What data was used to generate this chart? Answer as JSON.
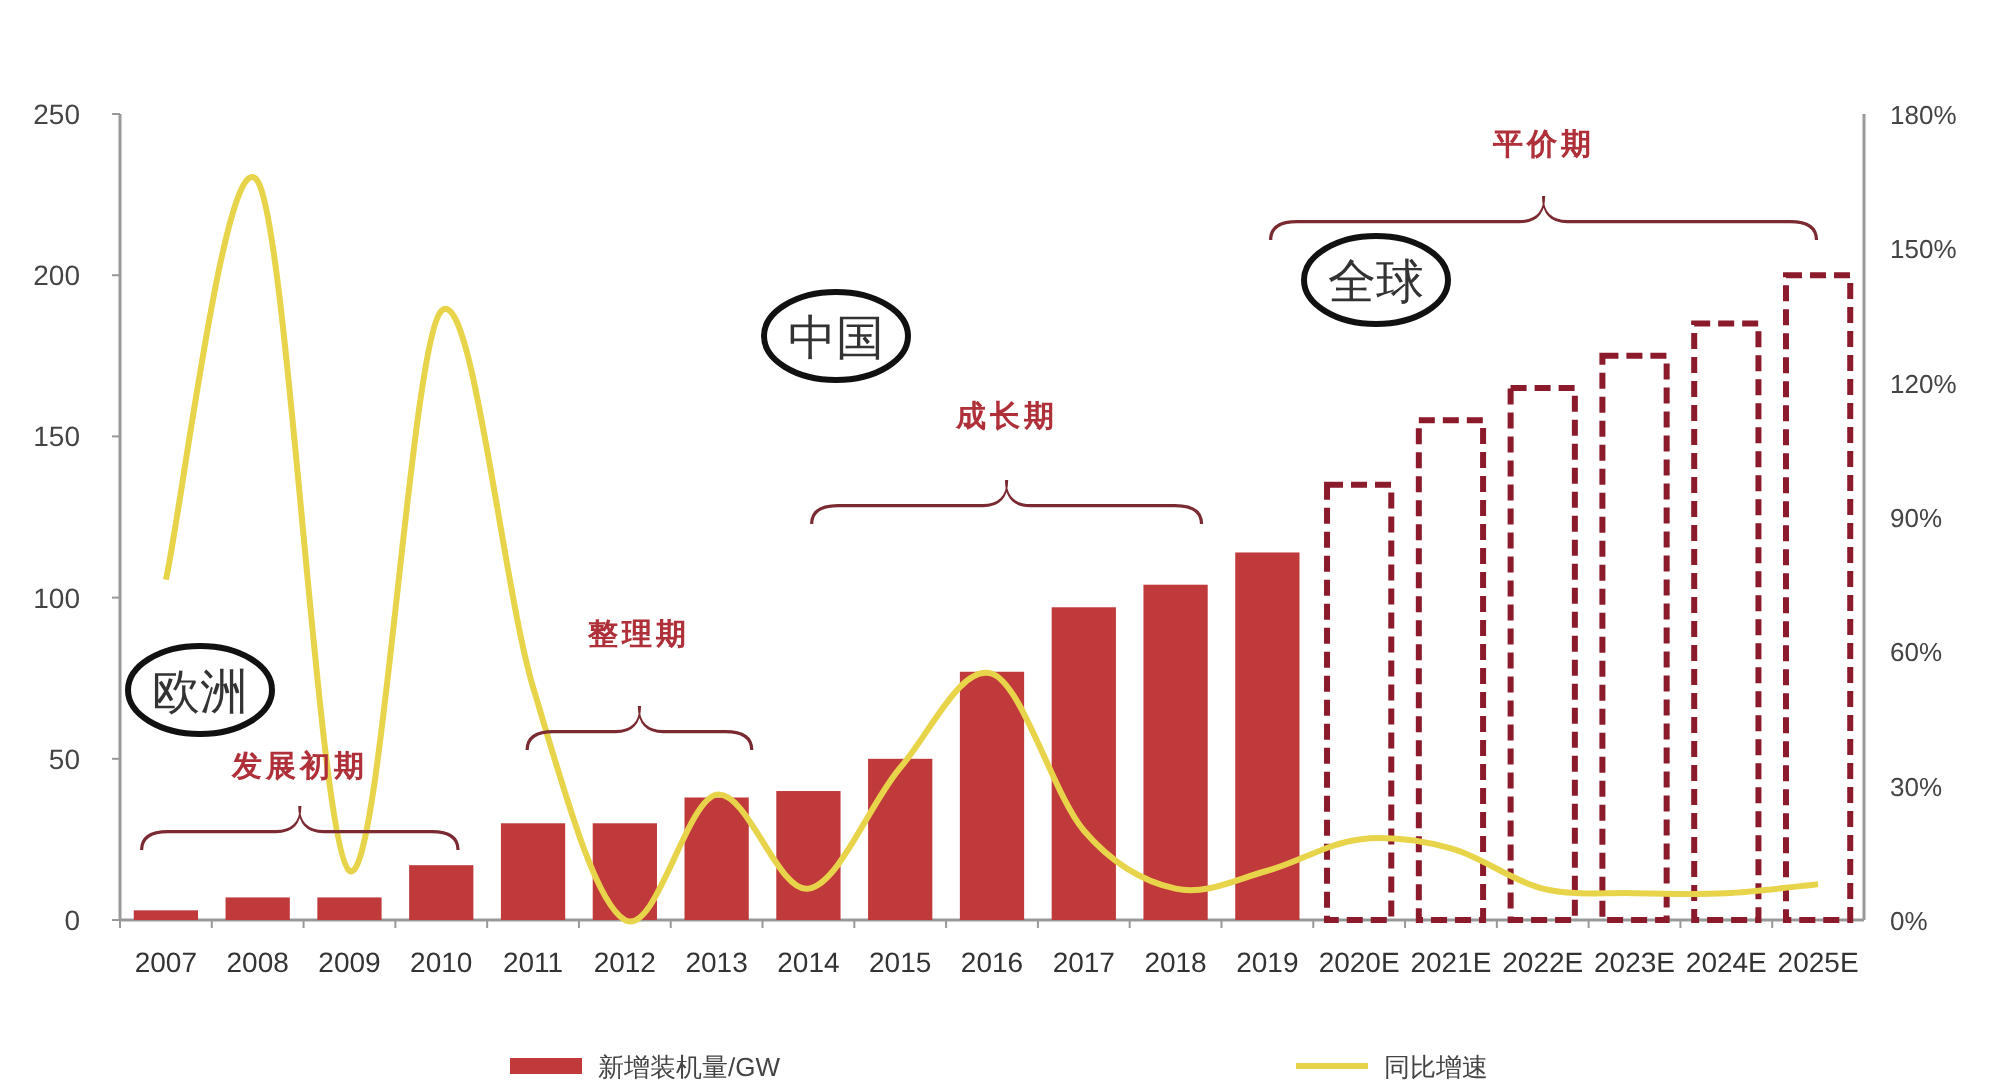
{
  "chart_data": {
    "type": "bar",
    "categories": [
      "2007",
      "2008",
      "2009",
      "2010",
      "2011",
      "2012",
      "2013",
      "2014",
      "2015",
      "2016",
      "2017",
      "2018",
      "2019",
      "2020E",
      "2021E",
      "2022E",
      "2023E",
      "2024E",
      "2025E"
    ],
    "series": [
      {
        "name": "新增装机量/GW",
        "color": "#c0393b",
        "values": [
          3,
          7,
          7,
          17,
          30,
          30,
          38,
          40,
          50,
          77,
          97,
          104,
          114,
          null,
          null,
          null,
          null,
          null,
          null
        ]
      },
      {
        "color": "#8b1a2a",
        "line_style": "dashed",
        "values": [
          null,
          null,
          null,
          null,
          null,
          null,
          null,
          null,
          null,
          null,
          null,
          null,
          null,
          135,
          155,
          165,
          175,
          185,
          200
        ]
      },
      {
        "name": "同比增速",
        "type": "line",
        "axis": "y2",
        "color": "#e8d44a",
        "values": [
          76,
          165,
          11,
          136,
          52,
          0,
          28,
          7,
          34,
          55,
          20,
          7,
          11,
          18,
          16,
          7,
          6,
          6,
          8
        ]
      }
    ],
    "ylim": [
      0,
      250
    ],
    "yticks": [
      0,
      50,
      100,
      150,
      200,
      250
    ],
    "y2lim": [
      0,
      180
    ],
    "y2ticks": [
      {
        "value": 0,
        "label": "0%"
      },
      {
        "value": 30,
        "label": "30%"
      },
      {
        "value": 60,
        "label": "60%"
      },
      {
        "value": 90,
        "label": "90%"
      },
      {
        "value": 120,
        "label": "120%"
      },
      {
        "value": 150,
        "label": "150%"
      },
      {
        "value": 180,
        "label": "180%"
      }
    ],
    "annotations": [
      "欧洲",
      "发展初期",
      "整理期",
      "中国",
      "成长期",
      "全球",
      "平价期"
    ],
    "legend": "bottom",
    "grid": false
  }
}
